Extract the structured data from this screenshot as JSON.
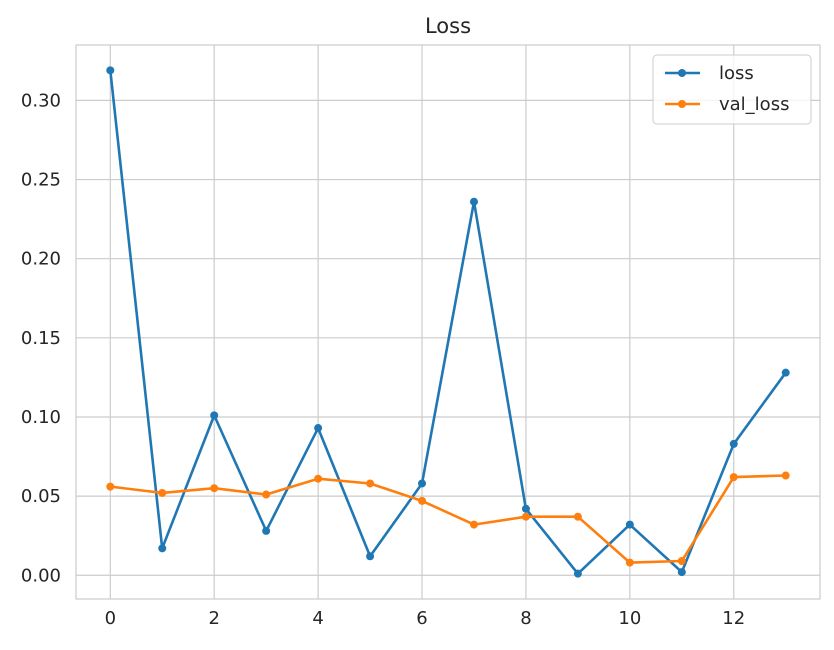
{
  "chart_data": {
    "type": "line",
    "title": "Loss",
    "xlabel": "",
    "ylabel": "",
    "x": [
      0,
      1,
      2,
      3,
      4,
      5,
      6,
      7,
      8,
      9,
      10,
      11,
      12,
      13
    ],
    "series": [
      {
        "name": "loss",
        "color": "#1f77b4",
        "values": [
          0.319,
          0.017,
          0.101,
          0.028,
          0.093,
          0.012,
          0.058,
          0.236,
          0.042,
          0.001,
          0.032,
          0.002,
          0.083,
          0.128
        ]
      },
      {
        "name": "val_loss",
        "color": "#ff7f0e",
        "values": [
          0.056,
          0.052,
          0.055,
          0.051,
          0.061,
          0.058,
          0.047,
          0.032,
          0.037,
          0.037,
          0.008,
          0.009,
          0.062,
          0.063
        ]
      }
    ],
    "xlim": [
      -0.66,
      13.66
    ],
    "ylim": [
      -0.015,
      0.335
    ],
    "x_ticks": [
      "0",
      "2",
      "4",
      "6",
      "8",
      "10",
      "12"
    ],
    "y_ticks": [
      "0.00",
      "0.05",
      "0.10",
      "0.15",
      "0.20",
      "0.25",
      "0.30"
    ],
    "grid": true,
    "legend_position": "top-right"
  }
}
